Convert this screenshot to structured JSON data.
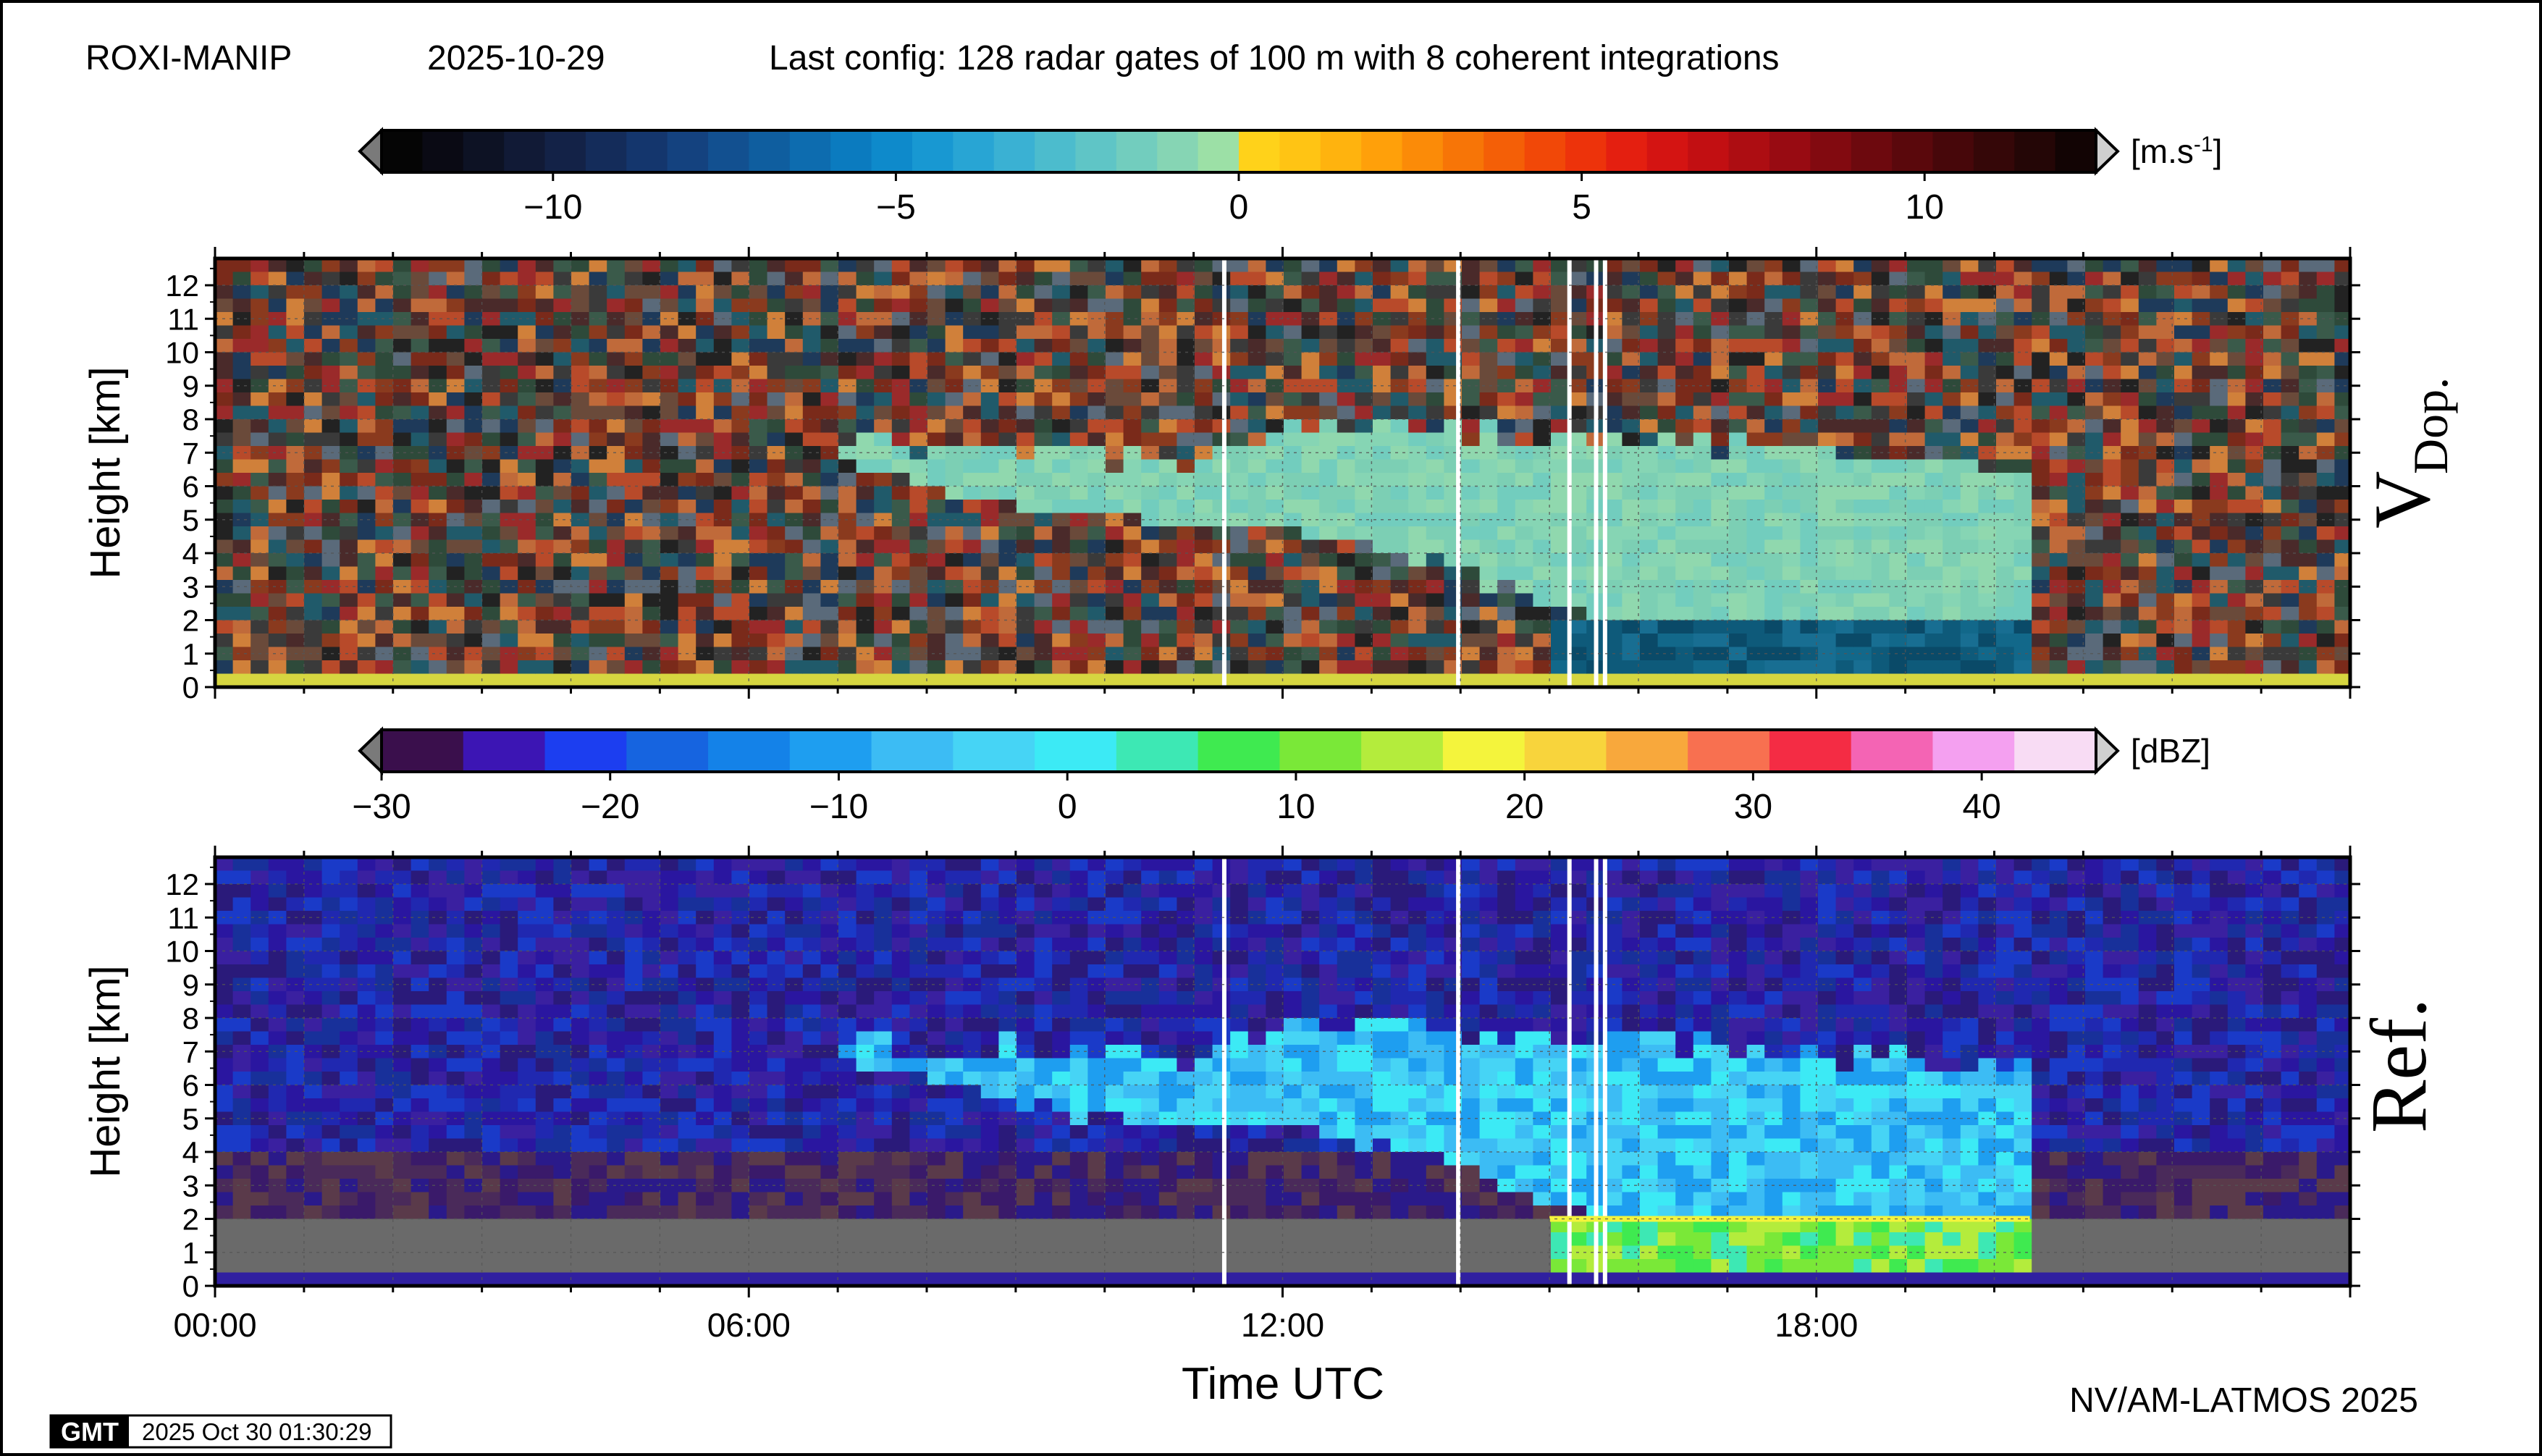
{
  "header": {
    "station": "ROXI-MANIP",
    "date": "2025-10-29",
    "config": "Last config: 128 radar gates of 100 m with 8 coherent integrations"
  },
  "footer": {
    "credit": "NV/AM-LATMOS 2025",
    "gmt_logo": "GMT",
    "timestamp": "2025 Oct 30 01:30:29"
  },
  "chart_data": [
    {
      "type": "heatmap",
      "name": "Doppler velocity",
      "title": "",
      "side_label_main": "V",
      "side_label_sub": "Dop.",
      "xlabel": "",
      "ylabel": "Height [km]",
      "xlim_hours": [
        0,
        24
      ],
      "ylim_km": [
        0,
        12.8
      ],
      "y_ticks": [
        0,
        1,
        2,
        3,
        4,
        5,
        6,
        7,
        8,
        9,
        10,
        11,
        12
      ],
      "x_ticks": [
        "00:00",
        "06:00",
        "12:00",
        "18:00"
      ],
      "grid": true,
      "colorbar": {
        "unit_main": "[m.s",
        "unit_sup": "-1",
        "unit_end": "]",
        "range": [
          -12.5,
          12.5
        ],
        "tick_values": [
          -10,
          -5,
          0,
          5,
          10
        ],
        "tick_labels": [
          "−10",
          "−5",
          "0",
          "5",
          "10"
        ],
        "palette": [
          "#050505",
          "#0a0a14",
          "#0d1224",
          "#111a36",
          "#132247",
          "#142c5a",
          "#14366d",
          "#14427f",
          "#125090",
          "#0f5e9f",
          "#0d6caf",
          "#0b7bbf",
          "#0e8acb",
          "#1898d2",
          "#28a5d4",
          "#3ab1d3",
          "#4cbccd",
          "#5fc5c6",
          "#72cdbe",
          "#86d5b4",
          "#9ce0a6",
          "#ffd21a",
          "#ffc414",
          "#ffb30e",
          "#ffa00a",
          "#fb8b08",
          "#f77507",
          "#f45f07",
          "#f14808",
          "#ed330b",
          "#e41f10",
          "#d41412",
          "#c20f12",
          "#ad0d12",
          "#980b12",
          "#820a10",
          "#6d090e",
          "#5a080c",
          "#47070a",
          "#350708",
          "#240606",
          "#120404"
        ]
      },
      "series": [
        {
          "name": "cloud_top_km",
          "x_hours": [
            7.0,
            7.5,
            8.0,
            9.0,
            10.0,
            11.0,
            11.5,
            12.0,
            13.0,
            14.0,
            15.0,
            16.0,
            17.0,
            18.0,
            19.0,
            20.0,
            20.5
          ],
          "y": [
            7.5,
            7.3,
            7.2,
            7.0,
            6.9,
            6.6,
            7.2,
            8.0,
            7.8,
            7.6,
            7.4,
            7.3,
            7.2,
            7.0,
            6.9,
            6.5,
            6.2
          ]
        },
        {
          "name": "cloud_base_km",
          "x_hours": [
            7.0,
            8.0,
            9.0,
            10.0,
            11.0,
            12.0,
            13.0,
            14.0,
            14.5,
            15.0,
            15.5,
            16.0,
            18.0,
            20.0,
            20.5
          ],
          "y": [
            7.0,
            6.0,
            5.5,
            5.0,
            4.8,
            4.7,
            4.2,
            3.6,
            3.0,
            2.5,
            2.0,
            0.3,
            0.3,
            0.3,
            0.3
          ]
        },
        {
          "name": "rain_region",
          "x_start_hours": 15.0,
          "x_end_hours": 20.4,
          "y_top_km": 2.0
        }
      ]
    },
    {
      "type": "heatmap",
      "name": "Reflectivity",
      "title": "",
      "side_label_main": "Ref.",
      "xlabel": "Time UTC",
      "ylabel": "Height [km]",
      "xlim_hours": [
        0,
        24
      ],
      "ylim_km": [
        0,
        12.8
      ],
      "y_ticks": [
        0,
        1,
        2,
        3,
        4,
        5,
        6,
        7,
        8,
        9,
        10,
        11,
        12
      ],
      "x_ticks": [
        "00:00",
        "06:00",
        "12:00",
        "18:00"
      ],
      "grid": true,
      "colorbar": {
        "unit_main": "[dBZ]",
        "unit_sup": "",
        "unit_end": "",
        "range": [
          -30,
          45
        ],
        "tick_values": [
          -30,
          -20,
          -10,
          0,
          10,
          20,
          30,
          40
        ],
        "tick_labels": [
          "−30",
          "−20",
          "−10",
          "0",
          "10",
          "20",
          "30",
          "40"
        ],
        "palette": [
          "#3a0f4c",
          "#3c15b4",
          "#1c3ef0",
          "#1664e0",
          "#1482e8",
          "#1e9ef0",
          "#3cbcf4",
          "#46d4f5",
          "#3ceaf5",
          "#3de8b4",
          "#3fea50",
          "#7ae838",
          "#b4ec3c",
          "#f4f43c",
          "#f8d43c",
          "#f8a83c",
          "#f87050",
          "#f42c44",
          "#f464b4",
          "#f4a0f0",
          "#f8dcf4"
        ]
      },
      "series": [
        {
          "name": "rain_top_km",
          "x_start_hours": 15.0,
          "x_end_hours": 20.4,
          "y_km": 2.0
        }
      ]
    }
  ]
}
